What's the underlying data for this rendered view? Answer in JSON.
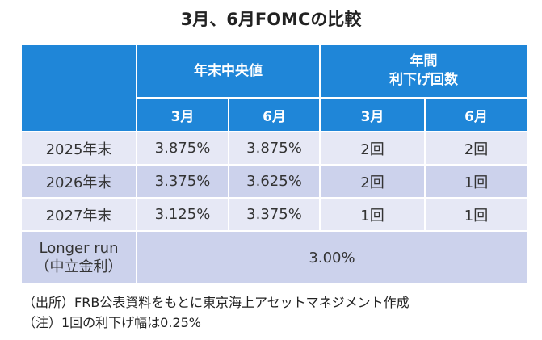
{
  "title": "3月、6月FOMCの比較",
  "header": {
    "group1": "年末中央値",
    "group2_line1": "年間",
    "group2_line2": "利下げ回数",
    "sub_cols": [
      "3月",
      "6月",
      "3月",
      "6月"
    ]
  },
  "rows": [
    {
      "label": "2025年末",
      "cells": [
        "3.875%",
        "3.875%",
        "2回",
        "2回"
      ]
    },
    {
      "label": "2026年末",
      "cells": [
        "3.375%",
        "3.625%",
        "2回",
        "1回"
      ]
    },
    {
      "label": "2027年末",
      "cells": [
        "3.125%",
        "3.375%",
        "1回",
        "1回"
      ]
    }
  ],
  "longer_run": {
    "label_line1": "Longer run",
    "label_line2": "（中立金利）",
    "value": "3.00%"
  },
  "notes": [
    "（出所）FRB公表資料をもとに東京海上アセットマネジメント作成",
    "（注）1回の利下げ幅は0.25%"
  ],
  "colors": {
    "header_blue": "#1f86d8",
    "row_light": "#e6e8f5",
    "row_medium": "#ccd2ec"
  }
}
